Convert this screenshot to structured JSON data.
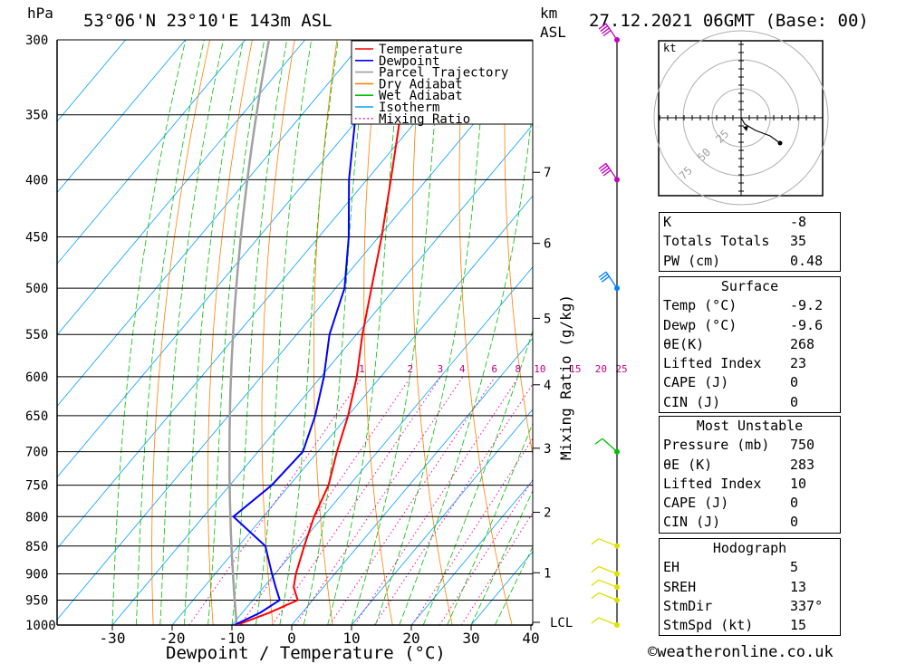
{
  "header": {
    "pressure_unit": "hPa",
    "location": "53°06'N  23°10'E  143m  ASL",
    "km_label": "km",
    "asl_label": "ASL",
    "datetime": "27.12.2021  06GMT  (Base: 00)"
  },
  "axes": {
    "xlabel": "Dewpoint / Temperature (°C)",
    "ylabel_right": "Mixing Ratio (g/kg)",
    "pressure_levels": [
      300,
      350,
      400,
      450,
      500,
      550,
      600,
      650,
      700,
      750,
      800,
      850,
      900,
      950,
      1000
    ],
    "temp_ticks": [
      -30,
      -20,
      -10,
      0,
      10,
      20,
      30,
      40
    ],
    "km_ticks": [
      {
        "km": "7",
        "p": 394
      },
      {
        "km": "6",
        "p": 456
      },
      {
        "km": "5",
        "p": 532
      },
      {
        "km": "4",
        "p": 610
      },
      {
        "km": "3",
        "p": 695
      },
      {
        "km": "2",
        "p": 793
      },
      {
        "km": "1",
        "p": 898
      }
    ],
    "lcl_label": "LCL",
    "lcl_p": 1000,
    "mixing_ratio_labels": [
      "1",
      "2",
      "3",
      "4",
      "6",
      "8",
      "10",
      "15",
      "20",
      "25"
    ]
  },
  "legend": {
    "items": [
      {
        "label": "Temperature",
        "color": "#ff0000",
        "style": "solid"
      },
      {
        "label": "Dewpoint",
        "color": "#0000ff",
        "style": "solid"
      },
      {
        "label": "Parcel Trajectory",
        "color": "#a0a0a0",
        "style": "solid"
      },
      {
        "label": "Dry Adiabat",
        "color": "#ff8000",
        "style": "solid"
      },
      {
        "label": "Wet Adiabat",
        "color": "#00c000",
        "style": "solid"
      },
      {
        "label": "Isotherm",
        "color": "#00a0ff",
        "style": "solid"
      },
      {
        "label": "Mixing Ratio",
        "color": "#ff00a0",
        "style": "dotted"
      }
    ]
  },
  "chart_data": {
    "type": "line",
    "title": "",
    "xlabel": "Dewpoint / Temperature (°C)",
    "ylabel": "hPa",
    "xlim": [
      -40,
      40
    ],
    "ylim": [
      1000,
      300
    ],
    "y_scale": "log",
    "skew": "skew-T",
    "series": [
      {
        "name": "Temperature",
        "color": "#ff0000",
        "points": [
          {
            "p": 1000,
            "t": -9.2
          },
          {
            "p": 975,
            "t": -5.5
          },
          {
            "p": 950,
            "t": -2.5
          },
          {
            "p": 925,
            "t": -5.0
          },
          {
            "p": 900,
            "t": -6.5
          },
          {
            "p": 850,
            "t": -9.0
          },
          {
            "p": 800,
            "t": -11.5
          },
          {
            "p": 750,
            "t": -13.5
          },
          {
            "p": 700,
            "t": -16.8
          },
          {
            "p": 650,
            "t": -20.0
          },
          {
            "p": 600,
            "t": -24.0
          },
          {
            "p": 550,
            "t": -29.0
          },
          {
            "p": 500,
            "t": -34.0
          },
          {
            "p": 450,
            "t": -39.5
          },
          {
            "p": 400,
            "t": -46.0
          },
          {
            "p": 350,
            "t": -53.5
          },
          {
            "p": 300,
            "t": -61.5
          }
        ]
      },
      {
        "name": "Dewpoint",
        "color": "#0000ff",
        "points": [
          {
            "p": 1000,
            "t": -9.6
          },
          {
            "p": 975,
            "t": -7.0
          },
          {
            "p": 950,
            "t": -5.5
          },
          {
            "p": 925,
            "t": -8.0
          },
          {
            "p": 900,
            "t": -10.5
          },
          {
            "p": 850,
            "t": -15.5
          },
          {
            "p": 800,
            "t": -25.0
          },
          {
            "p": 750,
            "t": -23.0
          },
          {
            "p": 700,
            "t": -22.5
          },
          {
            "p": 650,
            "t": -25.5
          },
          {
            "p": 600,
            "t": -29.5
          },
          {
            "p": 550,
            "t": -34.5
          },
          {
            "p": 500,
            "t": -38.5
          },
          {
            "p": 450,
            "t": -45.0
          },
          {
            "p": 400,
            "t": -53.0
          },
          {
            "p": 350,
            "t": -61.0
          },
          {
            "p": 300,
            "t": -69.0
          }
        ]
      }
    ]
  },
  "wind_barbs": [
    {
      "p": 1000,
      "color": "#e0e000"
    },
    {
      "p": 950,
      "color": "#e0e000"
    },
    {
      "p": 925,
      "color": "#e0e000"
    },
    {
      "p": 900,
      "color": "#e0e000"
    },
    {
      "p": 850,
      "color": "#e0e000"
    },
    {
      "p": 700,
      "color": "#00c000"
    },
    {
      "p": 500,
      "color": "#0080ff"
    },
    {
      "p": 400,
      "color": "#c000c0"
    },
    {
      "p": 300,
      "color": "#c000c0"
    }
  ],
  "hodograph": {
    "unit_label": "kt",
    "ring_labels": [
      "25",
      "50",
      "75"
    ]
  },
  "indices": {
    "general": [
      {
        "key": "K",
        "value": "-8"
      },
      {
        "key": "Totals Totals",
        "value": "35"
      },
      {
        "key": "PW (cm)",
        "value": "0.48"
      }
    ],
    "surface": {
      "title": "Surface",
      "rows": [
        {
          "key": "Temp (°C)",
          "value": "-9.2"
        },
        {
          "key": "Dewp (°C)",
          "value": "-9.6"
        },
        {
          "key": "θE(K)",
          "value": "268"
        },
        {
          "key": "Lifted Index",
          "value": "23"
        },
        {
          "key": "CAPE (J)",
          "value": "0"
        },
        {
          "key": "CIN (J)",
          "value": "0"
        }
      ]
    },
    "most_unstable": {
      "title": "Most Unstable",
      "rows": [
        {
          "key": "Pressure (mb)",
          "value": "750"
        },
        {
          "key": "θE (K)",
          "value": "283"
        },
        {
          "key": "Lifted Index",
          "value": "10"
        },
        {
          "key": "CAPE (J)",
          "value": "0"
        },
        {
          "key": "CIN (J)",
          "value": "0"
        }
      ]
    },
    "hodograph": {
      "title": "Hodograph",
      "rows": [
        {
          "key": "EH",
          "value": "5"
        },
        {
          "key": "SREH",
          "value": "13"
        },
        {
          "key": "StmDir",
          "value": "337°"
        },
        {
          "key": "StmSpd (kt)",
          "value": "15"
        }
      ]
    }
  },
  "footer": {
    "copyright_symbol": "©",
    "site": "weatheronline.co.uk"
  }
}
